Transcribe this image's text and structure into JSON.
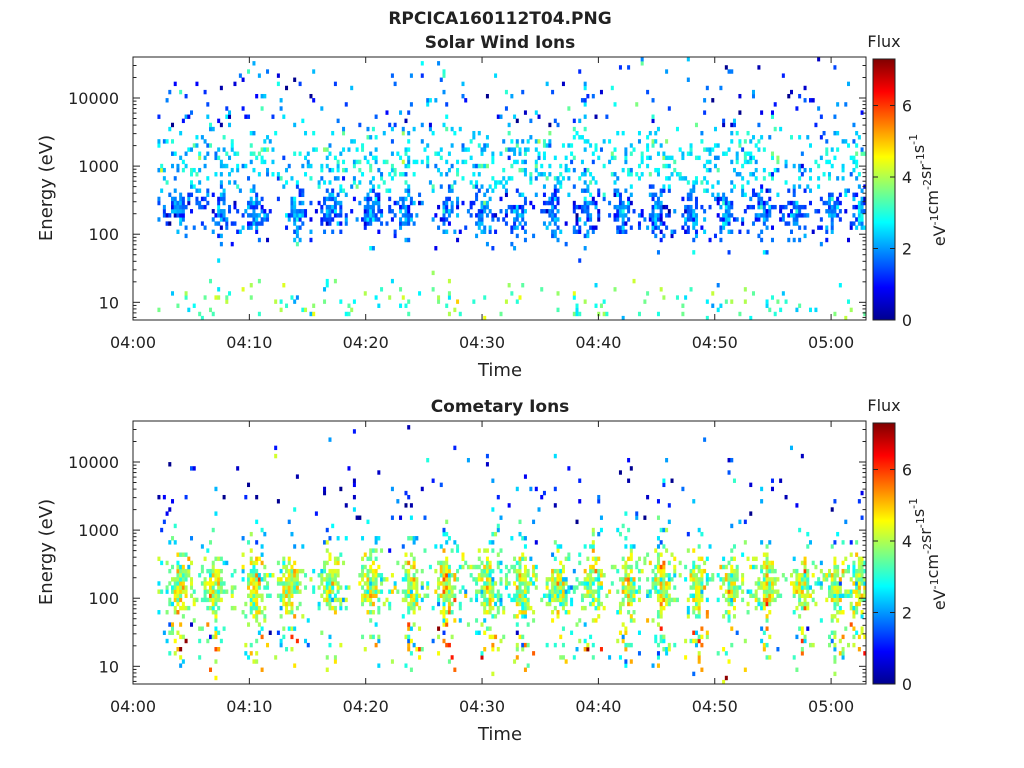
{
  "figure": {
    "title": "RPCICA160112T04.PNG"
  },
  "chart_data": [
    {
      "type": "heatmap",
      "title": "Solar Wind Ions",
      "xlabel": "Time",
      "ylabel": "Energy (eV)",
      "x_ticks": [
        "04:00",
        "04:10",
        "04:20",
        "04:30",
        "04:40",
        "04:50",
        "05:00"
      ],
      "y_ticks": [
        "10",
        "100",
        "1000",
        "10000"
      ],
      "y_scale": "log",
      "xlim": [
        "04:00",
        "05:03"
      ],
      "ylim": [
        5.5,
        40000
      ],
      "colorbar": {
        "title": "Flux",
        "label": "eV-1cm-2sr-1s-1",
        "label_parts": [
          [
            "eV",
            ""
          ],
          [
            "-1",
            "sup"
          ],
          [
            "cm",
            ""
          ],
          [
            "-2",
            "sup"
          ],
          [
            "sr",
            ""
          ],
          [
            "-1",
            "sup"
          ],
          [
            "s",
            ""
          ],
          [
            "-1",
            "sup"
          ]
        ],
        "ticks": [
          0,
          2,
          4,
          6
        ],
        "range": [
          0,
          7.3
        ],
        "colormap": "jet"
      },
      "pattern": {
        "seed": 11,
        "start_minute": 2,
        "burst_minutes": [
          4,
          7.5,
          10.5,
          14,
          17,
          20.5,
          23.5,
          27,
          30,
          33,
          36,
          39,
          42,
          45,
          48,
          51,
          54,
          57,
          60,
          62.5
        ],
        "bands": [
          {
            "center": 220,
            "spread": 0.22,
            "density": 0.55,
            "flux_mean": 1.3,
            "flux_sd": 0.5,
            "burst": true
          },
          {
            "center": 1000,
            "spread": 0.35,
            "density": 0.22,
            "flux_mean": 2.5,
            "flux_sd": 0.5,
            "burst": false
          },
          {
            "center": 6000,
            "spread": 0.45,
            "density": 0.06,
            "flux_mean": 1.4,
            "flux_sd": 0.9,
            "burst": false
          },
          {
            "center": 9,
            "spread": 0.18,
            "density": 0.08,
            "flux_mean": 3.3,
            "flux_sd": 0.6,
            "burst": false,
            "streak": true
          }
        ]
      }
    },
    {
      "type": "heatmap",
      "title": "Cometary Ions",
      "xlabel": "Time",
      "ylabel": "Energy (eV)",
      "x_ticks": [
        "04:00",
        "04:10",
        "04:20",
        "04:30",
        "04:40",
        "04:50",
        "05:00"
      ],
      "y_ticks": [
        "10",
        "100",
        "1000",
        "10000"
      ],
      "y_scale": "log",
      "xlim": [
        "04:00",
        "05:03"
      ],
      "ylim": [
        5.5,
        40000
      ],
      "colorbar": {
        "title": "Flux",
        "label": "eV-1cm-2sr-1s-1",
        "label_parts": [
          [
            "eV",
            ""
          ],
          [
            "-1",
            "sup"
          ],
          [
            "cm",
            ""
          ],
          [
            "-2",
            "sup"
          ],
          [
            "sr",
            ""
          ],
          [
            "-1",
            "sup"
          ],
          [
            "s",
            ""
          ],
          [
            "-1",
            "sup"
          ]
        ],
        "ticks": [
          0,
          2,
          4,
          6
        ],
        "range": [
          0,
          7.3
        ],
        "colormap": "jet"
      },
      "pattern": {
        "seed": 29,
        "start_minute": 2,
        "burst_minutes": [
          4,
          7,
          10.5,
          13.5,
          17,
          20.5,
          24,
          27,
          30.5,
          33.5,
          36.5,
          39.5,
          42.5,
          45.5,
          48.5,
          51.5,
          54.5,
          57.5,
          60.5,
          62.5
        ],
        "bands": [
          {
            "center": 150,
            "spread": 0.28,
            "density": 0.72,
            "flux_mean": 3.5,
            "flux_sd": 0.7,
            "burst": true
          },
          {
            "center": 600,
            "spread": 0.25,
            "density": 0.12,
            "flux_mean": 2.2,
            "flux_sd": 0.7,
            "burst": true
          },
          {
            "center": 3000,
            "spread": 0.4,
            "density": 0.03,
            "flux_mean": 1.0,
            "flux_sd": 0.8,
            "burst": false
          },
          {
            "center": 25,
            "spread": 0.25,
            "density": 0.18,
            "flux_mean": 3.4,
            "flux_sd": 1.3,
            "burst": true,
            "streak": true
          }
        ]
      }
    }
  ]
}
